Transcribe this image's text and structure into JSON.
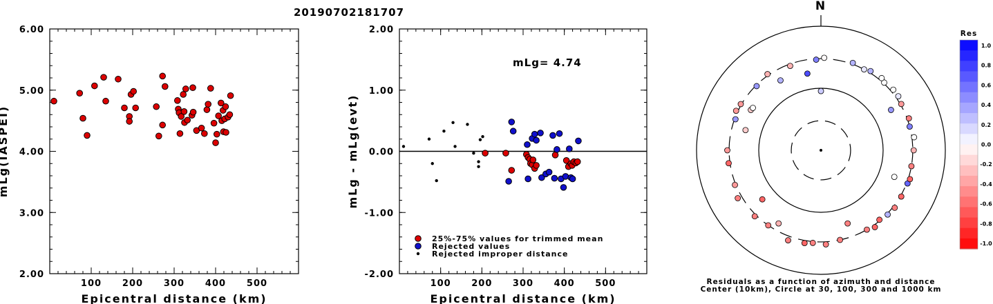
{
  "title": "20190702181707",
  "chart_data": [
    {
      "type": "scatter",
      "ylabel": "mLg(IASPEI)",
      "xlabel": "Epicentral distance (km)",
      "xlim": [
        0,
        600
      ],
      "ylim": [
        2.0,
        6.0
      ],
      "x_ticks": [
        "100",
        "200",
        "300",
        "400",
        "500"
      ],
      "y_ticks": [
        "2.00",
        "3.00",
        "4.00",
        "5.00",
        "6.00"
      ],
      "color": "#dd0000",
      "points": [
        [
          10,
          4.82
        ],
        [
          72,
          4.95
        ],
        [
          80,
          4.54
        ],
        [
          90,
          4.26
        ],
        [
          108,
          5.07
        ],
        [
          130,
          5.21
        ],
        [
          135,
          4.82
        ],
        [
          165,
          5.18
        ],
        [
          180,
          4.71
        ],
        [
          192,
          4.57
        ],
        [
          192,
          4.49
        ],
        [
          196,
          4.93
        ],
        [
          202,
          4.98
        ],
        [
          207,
          4.71
        ],
        [
          257,
          4.73
        ],
        [
          263,
          4.25
        ],
        [
          272,
          5.23
        ],
        [
          272,
          4.43
        ],
        [
          278,
          5.06
        ],
        [
          308,
          4.83
        ],
        [
          310,
          4.69
        ],
        [
          312,
          4.63
        ],
        [
          314,
          4.29
        ],
        [
          317,
          4.57
        ],
        [
          322,
          4.93
        ],
        [
          324,
          4.65
        ],
        [
          325,
          4.47
        ],
        [
          328,
          5.02
        ],
        [
          332,
          4.51
        ],
        [
          343,
          4.59
        ],
        [
          345,
          5.04
        ],
        [
          346,
          4.64
        ],
        [
          354,
          4.34
        ],
        [
          366,
          4.38
        ],
        [
          373,
          4.29
        ],
        [
          379,
          4.68
        ],
        [
          382,
          4.77
        ],
        [
          388,
          5.03
        ],
        [
          396,
          4.46
        ],
        [
          400,
          4.14
        ],
        [
          403,
          4.28
        ],
        [
          407,
          4.58
        ],
        [
          413,
          4.79
        ],
        [
          415,
          4.5
        ],
        [
          418,
          4.67
        ],
        [
          419,
          4.32
        ],
        [
          422,
          4.53
        ],
        [
          424,
          4.73
        ],
        [
          425,
          4.31
        ],
        [
          430,
          4.56
        ],
        [
          434,
          4.6
        ],
        [
          436,
          4.91
        ]
      ]
    },
    {
      "type": "scatter",
      "ylabel": "mLg - mLg(evt)",
      "xlabel": "Epicentral distance (km)",
      "xlim": [
        0,
        600
      ],
      "ylim": [
        -2.0,
        2.0
      ],
      "x_ticks": [
        "100",
        "200",
        "300",
        "400",
        "500"
      ],
      "y_ticks": [
        "-2.00",
        "-1.00",
        "0.00",
        "1.00",
        "2.00"
      ],
      "annotation": "mLg= 4.74",
      "zero_line": 0,
      "legend": {
        "placement": "bottom",
        "entries": [
          {
            "label": "25%-75% values for trimmed mean",
            "color": "#dd0000"
          },
          {
            "label": "Rejected values",
            "color": "#1010cc"
          },
          {
            "label": "Rejected improper distance",
            "color": "#000000"
          }
        ]
      },
      "series": [
        {
          "color": "#dd0000",
          "marker": "large",
          "points": [
            [
              208,
              -0.03
            ],
            [
              258,
              -0.03
            ],
            [
              272,
              -0.31
            ],
            [
              308,
              -0.05
            ],
            [
              312,
              -0.1
            ],
            [
              316,
              -0.13
            ],
            [
              318,
              -0.2
            ],
            [
              322,
              -0.22
            ],
            [
              324,
              -0.14
            ],
            [
              328,
              -0.28
            ],
            [
              332,
              -0.23
            ],
            [
              378,
              -0.06
            ],
            [
              405,
              -0.15
            ],
            [
              410,
              -0.25
            ],
            [
              416,
              -0.2
            ],
            [
              419,
              -0.23
            ],
            [
              423,
              -0.17
            ],
            [
              428,
              -0.19
            ],
            [
              432,
              -0.17
            ]
          ]
        },
        {
          "color": "#1010cc",
          "marker": "large",
          "points": [
            [
              265,
              -0.49
            ],
            [
              272,
              0.48
            ],
            [
              276,
              0.33
            ],
            [
              310,
              0.11
            ],
            [
              312,
              -0.45
            ],
            [
              322,
              0.21
            ],
            [
              328,
              0.28
            ],
            [
              332,
              0.18
            ],
            [
              342,
              0.3
            ],
            [
              345,
              -0.43
            ],
            [
              355,
              -0.37
            ],
            [
              363,
              -0.34
            ],
            [
              372,
              0.26
            ],
            [
              376,
              -0.44
            ],
            [
              382,
              0.03
            ],
            [
              388,
              0.29
            ],
            [
              392,
              -0.45
            ],
            [
              398,
              -0.59
            ],
            [
              403,
              -0.41
            ],
            [
              412,
              0.04
            ],
            [
              416,
              -0.43
            ],
            [
              420,
              -0.45
            ],
            [
              434,
              0.17
            ]
          ]
        },
        {
          "color": "#000000",
          "marker": "small",
          "points": [
            [
              10,
              0.08
            ],
            [
              72,
              0.2
            ],
            [
              80,
              -0.2
            ],
            [
              90,
              -0.48
            ],
            [
              108,
              0.33
            ],
            [
              130,
              0.47
            ],
            [
              135,
              0.08
            ],
            [
              165,
              0.44
            ],
            [
              180,
              -0.03
            ],
            [
              192,
              -0.17
            ],
            [
              192,
              -0.25
            ],
            [
              196,
              0.19
            ],
            [
              202,
              0.24
            ]
          ]
        }
      ]
    },
    {
      "type": "scatter",
      "title": "N",
      "caption_lines": [
        "Residuals as a function of azimuth and distance",
        "Center (10km), Circle at 30, 100, 300 and 1000 km"
      ],
      "colorbar": {
        "title": "Res",
        "tick_labels": [
          "1.0",
          "0.8",
          "0.6",
          "0.4",
          "0.2",
          "0.0",
          "-0.2",
          "-0.4",
          "-0.6",
          "-0.8",
          "-1.0"
        ],
        "max_color": "#0000ff",
        "min_color": "#ff0000"
      },
      "points_az_dist_res": [
        [
          2,
          310,
          -0.02
        ],
        [
          20,
          315,
          0.3
        ],
        [
          -3,
          290,
          0.5
        ],
        [
          -35,
          315,
          -0.3
        ],
        [
          -45,
          290,
          0.4
        ],
        [
          -60,
          308,
          -0.4
        ],
        [
          -65,
          320,
          -0.4
        ],
        [
          -70,
          290,
          0.4
        ],
        [
          -90,
          320,
          -0.4
        ],
        [
          -98,
          315,
          -0.6
        ],
        [
          -112,
          310,
          -0.4
        ],
        [
          -120,
          350,
          -0.5
        ],
        [
          -135,
          320,
          -0.5
        ],
        [
          -145,
          300,
          -0.5
        ],
        [
          -160,
          350,
          -0.5
        ],
        [
          -170,
          330,
          -0.6
        ],
        [
          -175,
          315,
          -0.5
        ],
        [
          177,
          330,
          -0.5
        ],
        [
          168,
          300,
          -0.5
        ],
        [
          150,
          300,
          -0.5
        ],
        [
          145,
          325,
          -0.6
        ],
        [
          140,
          290,
          -0.6
        ],
        [
          134,
          310,
          0.3
        ],
        [
          128,
          320,
          -0.5
        ],
        [
          120,
          310,
          -0.6
        ],
        [
          111,
          310,
          0.6
        ],
        [
          108,
          320,
          -0.6
        ],
        [
          100,
          300,
          -0.5
        ],
        [
          90,
          310,
          -0.3
        ],
        [
          82,
          325,
          0.0
        ],
        [
          75,
          300,
          0.5
        ],
        [
          70,
          320,
          -0.5
        ],
        [
          60,
          310,
          -0.4
        ],
        [
          55,
          330,
          0.1
        ],
        [
          50,
          330,
          0.0
        ],
        [
          43,
          310,
          0.0
        ],
        [
          40,
          330,
          0.0
        ],
        [
          32,
          320,
          0.3
        ],
        [
          28,
          300,
          0.1
        ],
        [
          60,
          200,
          0.4
        ],
        [
          -30,
          200,
          0.3
        ],
        [
          -10,
          180,
          0.7
        ],
        [
          -60,
          200,
          -0.2
        ],
        [
          -130,
          170,
          -0.6
        ],
        [
          -150,
          230,
          -0.3
        ],
        [
          160,
          180,
          -0.5
        ],
        [
          110,
          180,
          0.0
        ],
        [
          0,
          90,
          0.2
        ],
        [
          -58,
          195,
          0.0
        ],
        [
          -20,
          280,
          -0.3
        ],
        [
          -75,
          180,
          -0.2
        ]
      ]
    }
  ]
}
